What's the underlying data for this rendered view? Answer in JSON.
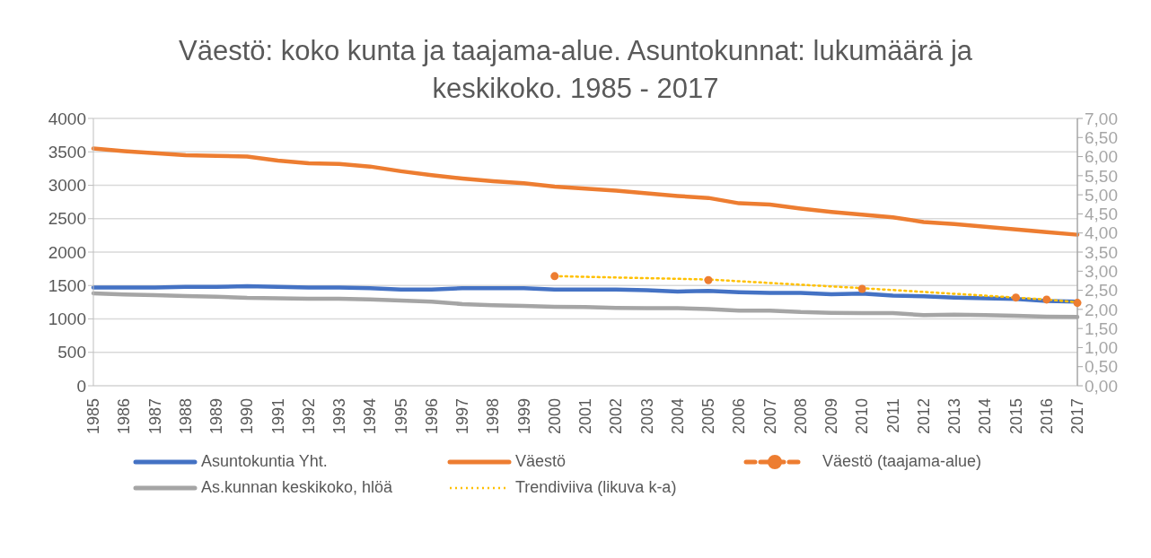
{
  "chart_data": {
    "type": "line",
    "title": "Väestö: koko kunta ja taajama-alue. Asuntokunnat: lukumäärä ja keskikoko. 1985 - 2017",
    "categories": [
      "1985",
      "1986",
      "1987",
      "1988",
      "1989",
      "1990",
      "1991",
      "1992",
      "1993",
      "1994",
      "1995",
      "1996",
      "1997",
      "1998",
      "1999",
      "2000",
      "2001",
      "2002",
      "2003",
      "2004",
      "2005",
      "2006",
      "2007",
      "2008",
      "2009",
      "2010",
      "2011",
      "2012",
      "2013",
      "2014",
      "2015",
      "2016",
      "2017"
    ],
    "series": [
      {
        "name": "Asuntokuntia Yht.",
        "color": "#4472c4",
        "values": [
          1470,
          1470,
          1470,
          1480,
          1480,
          1490,
          1480,
          1470,
          1470,
          1460,
          1440,
          1440,
          1460,
          1460,
          1460,
          1440,
          1440,
          1440,
          1430,
          1410,
          1420,
          1400,
          1390,
          1390,
          1370,
          1380,
          1350,
          1340,
          1320,
          1310,
          1300,
          1270,
          1260
        ]
      },
      {
        "name": "Väestö",
        "color": "#ed7d31",
        "values": [
          3550,
          3510,
          3480,
          3450,
          3440,
          3430,
          3370,
          3330,
          3320,
          3280,
          3210,
          3150,
          3100,
          3060,
          3030,
          2980,
          2950,
          2920,
          2880,
          2840,
          2810,
          2730,
          2710,
          2650,
          2600,
          2560,
          2520,
          2450,
          2420,
          2380,
          2340,
          2300,
          2260
        ]
      },
      {
        "name": "Väestö (taajama-alue)",
        "type": "scatter",
        "color": "#ed7d31",
        "marker": "circle",
        "line_style": "dashed",
        "values": [
          null,
          null,
          null,
          null,
          null,
          null,
          null,
          null,
          null,
          null,
          null,
          null,
          null,
          null,
          null,
          1640,
          null,
          null,
          null,
          null,
          1580,
          null,
          null,
          null,
          null,
          1450,
          null,
          null,
          null,
          null,
          1320,
          1290,
          1240
        ]
      },
      {
        "name": "As.kunnan  keskikoko, hlöä",
        "color": "#a5a5a5",
        "axis": "y2",
        "values": [
          2.42,
          2.39,
          2.37,
          2.35,
          2.33,
          2.3,
          2.29,
          2.28,
          2.28,
          2.26,
          2.23,
          2.2,
          2.14,
          2.11,
          2.09,
          2.07,
          2.06,
          2.04,
          2.03,
          2.03,
          2.01,
          1.97,
          1.97,
          1.93,
          1.91,
          1.9,
          1.9,
          1.85,
          1.86,
          1.85,
          1.83,
          1.81,
          1.8
        ]
      },
      {
        "name": "Trendiviiva (likuva k-a)",
        "color": "#ffc000",
        "line_style": "dotted",
        "values": [
          null,
          null,
          null,
          null,
          null,
          null,
          null,
          null,
          null,
          null,
          null,
          null,
          null,
          null,
          null,
          1640,
          null,
          null,
          null,
          null,
          1590,
          null,
          null,
          null,
          null,
          1460,
          null,
          null,
          null,
          null,
          1320,
          1290,
          1250
        ]
      }
    ],
    "ylim": [
      0,
      4000
    ],
    "yticks": [
      0,
      500,
      1000,
      1500,
      2000,
      2500,
      3000,
      3500,
      4000
    ],
    "y2lim": [
      0,
      7
    ],
    "y2ticks": [
      {
        "value": 0,
        "label": "0,00"
      },
      {
        "value": 0.5,
        "label": "0,50"
      },
      {
        "value": 1,
        "label": "1,00"
      },
      {
        "value": 1.5,
        "label": "1,50"
      },
      {
        "value": 2,
        "label": "2,00"
      },
      {
        "value": 2.5,
        "label": "2,50"
      },
      {
        "value": 3,
        "label": "3,00"
      },
      {
        "value": 3.5,
        "label": "3,50"
      },
      {
        "value": 4,
        "label": "4,00"
      },
      {
        "value": 4.5,
        "label": "4,50"
      },
      {
        "value": 5,
        "label": "5,00"
      },
      {
        "value": 5.5,
        "label": "5,50"
      },
      {
        "value": 6,
        "label": "6,00"
      },
      {
        "value": 6.5,
        "label": "6,50"
      },
      {
        "value": 7,
        "label": "7,00"
      }
    ],
    "grid": "y",
    "legend": "bottom"
  }
}
